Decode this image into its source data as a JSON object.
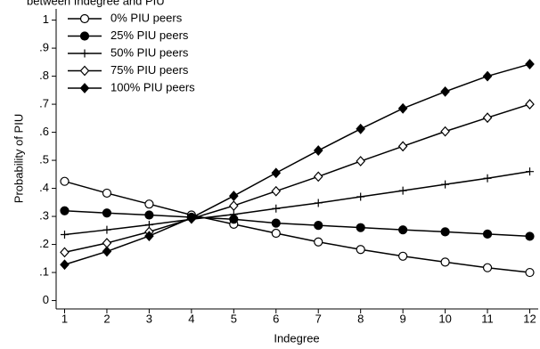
{
  "chart_data": {
    "type": "line",
    "title": "between Indegree and PIU",
    "x_label": "Indegree",
    "y_label": "Probability of PIU",
    "x": [
      1,
      2,
      3,
      4,
      5,
      6,
      7,
      8,
      9,
      10,
      11,
      12
    ],
    "xlim": [
      0.8,
      12.2
    ],
    "xticks": [
      1,
      2,
      3,
      4,
      5,
      6,
      7,
      8,
      9,
      10,
      11,
      12
    ],
    "ylim": [
      -0.03,
      1.04
    ],
    "yticks": [
      0,
      {
        "value": 0.1,
        "label": ".1"
      },
      {
        "value": 0.2,
        "label": ".2"
      },
      {
        "value": 0.3,
        "label": ".3"
      },
      {
        "value": 0.4,
        "label": ".4"
      },
      {
        "value": 0.5,
        "label": ".5"
      },
      {
        "value": 0.6,
        "label": ".6"
      },
      {
        "value": 0.7,
        "label": ".7"
      },
      {
        "value": 0.8,
        "label": ".8"
      },
      {
        "value": 0.9,
        "label": ".9"
      },
      1
    ],
    "grid": false,
    "legend": "upper left",
    "series": [
      {
        "name": "0% PIU peers",
        "color": "#000000",
        "marker": "circle-open",
        "values": [
          0.425,
          0.383,
          0.344,
          0.305,
          0.272,
          0.24,
          0.209,
          0.182,
          0.158,
          0.137,
          0.117,
          0.1
        ]
      },
      {
        "name": "25% PIU peers",
        "color": "#000000",
        "marker": "circle-filled",
        "values": [
          0.32,
          0.312,
          0.305,
          0.297,
          0.29,
          0.276,
          0.268,
          0.26,
          0.252,
          0.245,
          0.237,
          0.229
        ]
      },
      {
        "name": "50% PIU peers",
        "color": "#000000",
        "marker": "plus",
        "values": [
          0.235,
          0.252,
          0.27,
          0.29,
          0.307,
          0.328,
          0.348,
          0.37,
          0.392,
          0.414,
          0.436,
          0.46
        ]
      },
      {
        "name": "75% PIU peers",
        "color": "#000000",
        "marker": "diamond-open",
        "values": [
          0.172,
          0.205,
          0.245,
          0.292,
          0.338,
          0.39,
          0.442,
          0.497,
          0.55,
          0.603,
          0.652,
          0.7
        ]
      },
      {
        "name": "100% PIU peers",
        "color": "#000000",
        "marker": "diamond-filled",
        "values": [
          0.128,
          0.175,
          0.23,
          0.295,
          0.373,
          0.455,
          0.535,
          0.612,
          0.685,
          0.745,
          0.8,
          0.843
        ]
      }
    ]
  }
}
